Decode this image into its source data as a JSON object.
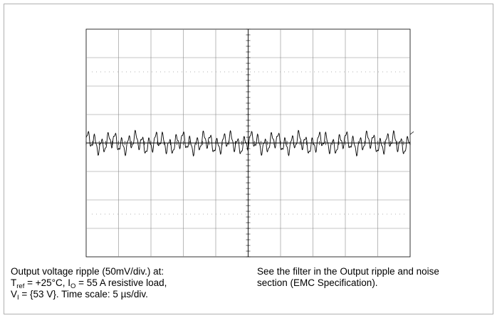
{
  "chart_data": {
    "type": "line",
    "title": "",
    "xlabel": "",
    "ylabel": "",
    "grid": true,
    "divisions": {
      "x": 10,
      "y": 8
    },
    "volts_per_div": "50mV/div.",
    "time_per_div": "5 µs/div.",
    "x_range_us": [
      0,
      50
    ],
    "y_range_mV": [
      -200,
      200
    ],
    "series": [
      {
        "name": "",
        "color": "#000000",
        "components": [
          {
            "amplitude_mV": 12,
            "period_us": 1.05
          },
          {
            "amplitude_mV": 7,
            "period_us": 3.6
          },
          {
            "amplitude_mV": 4,
            "period_us": 0.42
          }
        ],
        "sample_step_us": 0.05
      }
    ]
  },
  "caption": {
    "left": {
      "line1": "Output voltage ripple (50mV/div.) at:",
      "l2_t": "T",
      "l2_ref": "ref",
      "l2_mid": " = +25°C, I",
      "l2_o": "O",
      "l2_end": " = 55 A resistive load,",
      "l3_v": "V",
      "l3_i": "I",
      "l3_end": " = {53 V}. Time scale: 5 µs/div."
    },
    "right": {
      "line1": "See the filter in the Output ripple and noise",
      "line2": "section (EMC Specification)."
    }
  }
}
